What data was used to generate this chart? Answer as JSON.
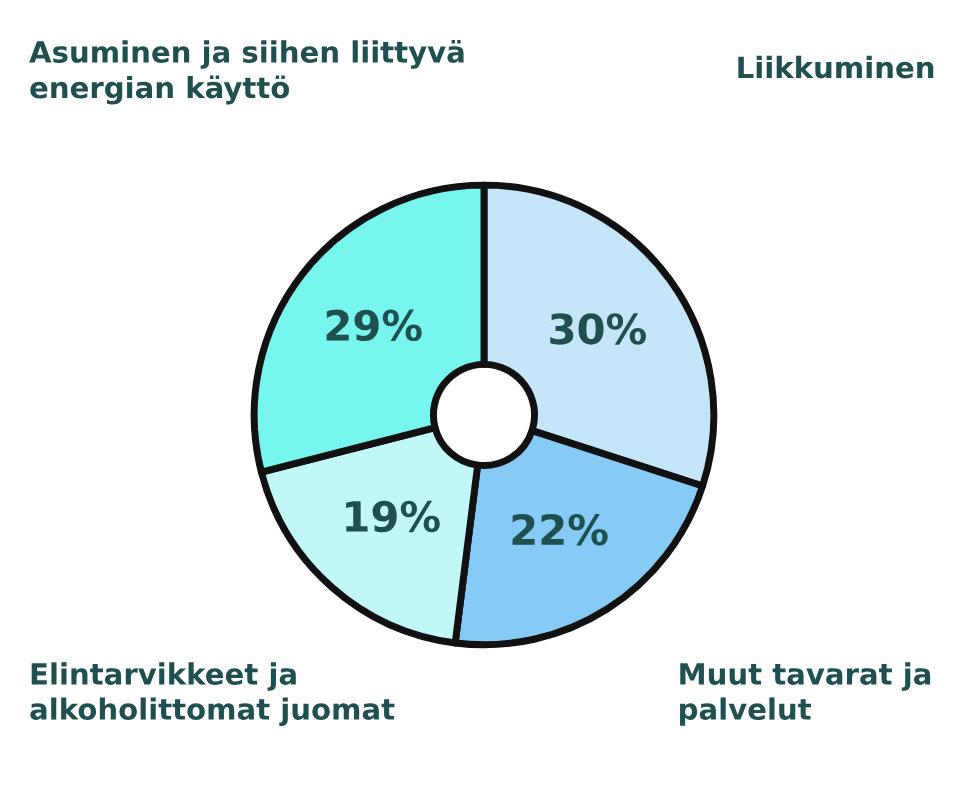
{
  "chart_data": {
    "type": "donut",
    "categories": [
      "Liikkuminen",
      "Muut tavarat ja palvelut",
      "Elintarvikkeet ja alkoholittomat juomat",
      "Asuminen ja siihen liittyvä energian käyttö"
    ],
    "values": [
      30,
      22,
      19,
      29
    ],
    "colors": [
      "#c4e6f8",
      "#86cbf6",
      "#c2f7f7",
      "#77f5ef"
    ],
    "value_labels": [
      "30%",
      "22%",
      "19%",
      "29%"
    ]
  }
}
